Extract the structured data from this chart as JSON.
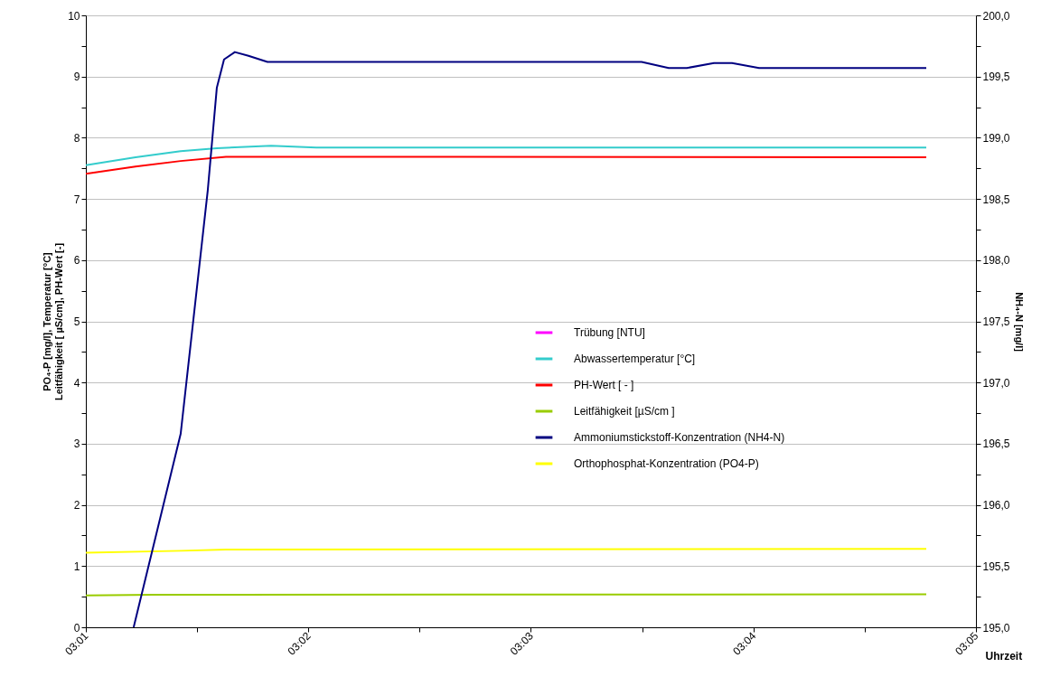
{
  "chart_data": {
    "type": "line",
    "xlabel": "Uhrzeit",
    "ylabel": "PO₄-P [mg/l], Temperatur [°C]\nLeitfähigkeit [ µS/cm], PH-Wert [-]",
    "y2label": "NH₄-N [mg/l]",
    "xlim": [
      3.01667,
      3.08333
    ],
    "xticks": [
      {
        "value": 3.01667,
        "label": "03:01"
      },
      {
        "value": 3.025,
        "label": null
      },
      {
        "value": 3.03333,
        "label": "03:02"
      },
      {
        "value": 3.04167,
        "label": null
      },
      {
        "value": 3.05,
        "label": "03:03"
      },
      {
        "value": 3.05833,
        "label": null
      },
      {
        "value": 3.06667,
        "label": "03:04"
      },
      {
        "value": 3.075,
        "label": null
      },
      {
        "value": 3.08333,
        "label": "03:05"
      }
    ],
    "ylim": [
      0,
      10
    ],
    "yticks": [
      0,
      {
        "value": 0.5,
        "label": null
      },
      1,
      {
        "value": 1.5,
        "label": null
      },
      2,
      {
        "value": 2.5,
        "label": null
      },
      3,
      {
        "value": 3.5,
        "label": null
      },
      4,
      {
        "value": 4.5,
        "label": null
      },
      5,
      {
        "value": 5.5,
        "label": null
      },
      6,
      {
        "value": 6.5,
        "label": null
      },
      7,
      {
        "value": 7.5,
        "label": null
      },
      8,
      {
        "value": 8.5,
        "label": null
      },
      9,
      {
        "value": 9.5,
        "label": null
      },
      10
    ],
    "y2lim": [
      195,
      200
    ],
    "y2ticks": [
      {
        "value": 195,
        "label": "195,0"
      },
      {
        "value": 195.25,
        "label": null
      },
      {
        "value": 195.5,
        "label": "195,5"
      },
      {
        "value": 195.75,
        "label": null
      },
      {
        "value": 196,
        "label": "196,0"
      },
      {
        "value": 196.25,
        "label": null
      },
      {
        "value": 196.5,
        "label": "196,5"
      },
      {
        "value": 196.75,
        "label": null
      },
      {
        "value": 197,
        "label": "197,0"
      },
      {
        "value": 197.25,
        "label": null
      },
      {
        "value": 197.5,
        "label": "197,5"
      },
      {
        "value": 197.75,
        "label": null
      },
      {
        "value": 198,
        "label": "198,0"
      },
      {
        "value": 198.25,
        "label": null
      },
      {
        "value": 198.5,
        "label": "198,5"
      },
      {
        "value": 198.75,
        "label": null
      },
      {
        "value": 199,
        "label": "199,0"
      },
      {
        "value": 199.25,
        "label": null
      },
      {
        "value": 199.5,
        "label": "199,5"
      },
      {
        "value": 199.75,
        "label": null
      },
      {
        "value": 200,
        "label": "200,0"
      }
    ],
    "grid": "y",
    "legend": "right",
    "marker": "none",
    "line_style": "solid",
    "series": [
      {
        "name": "Trübung [NTU]",
        "color": "#ff00ff"
      },
      {
        "name": "Abwassertemperatur [°C]",
        "color": "#33cccc",
        "x": [
          3.01667,
          3.02039,
          3.02377,
          3.02648,
          3.03054,
          3.03393,
          3.07961
        ],
        "values": [
          7.55,
          7.68,
          7.78,
          7.83,
          7.87,
          7.84,
          7.84
        ]
      },
      {
        "name": "PH-Wert [ - ]",
        "color": "#ff0000",
        "x": [
          3.01667,
          3.02039,
          3.02377,
          3.02716,
          3.07961
        ],
        "values": [
          7.41,
          7.53,
          7.62,
          7.69,
          7.68
        ]
      },
      {
        "name": "Leitfähigkeit [µS/cm ]",
        "color": "#99cc00",
        "x": [
          3.01667,
          3.02174,
          3.07961
        ],
        "values": [
          0.52,
          0.53,
          0.54
        ]
      },
      {
        "name": "Ammoniumstickstoff-Konzentration (NH4-N)",
        "color": "#000080",
        "axis": "y2",
        "x": [
          3.02025,
          3.02377,
          3.0258,
          3.02648,
          3.02702,
          3.02783,
          3.02885,
          3.03027,
          3.05829,
          3.06032,
          3.06168,
          3.06371,
          3.06506,
          3.06709,
          3.07961
        ],
        "values": [
          195.0,
          196.58,
          198.57,
          199.41,
          199.64,
          199.7,
          199.67,
          199.62,
          199.62,
          199.57,
          199.57,
          199.61,
          199.61,
          199.57,
          199.57
        ]
      },
      {
        "name": "Orthophosphat-Konzentration (PO4-P)",
        "color": "#ffff00",
        "x": [
          3.01667,
          3.02377,
          3.02716,
          3.07961
        ],
        "values": [
          1.22,
          1.25,
          1.27,
          1.28
        ]
      }
    ]
  }
}
